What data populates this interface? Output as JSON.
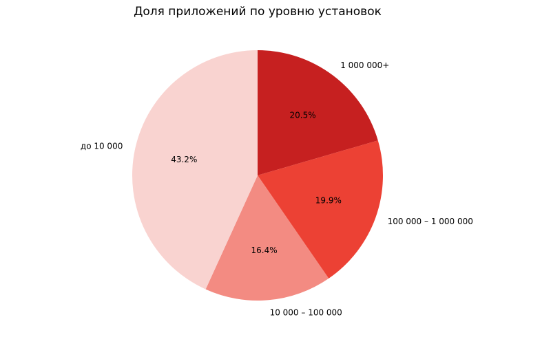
{
  "chart_data": {
    "type": "pie",
    "title": "Доля приложений по уровню установок",
    "slices": [
      {
        "label": "1 000 000+",
        "value": 20.5,
        "pct_label": "20.5%",
        "color": "#c62020"
      },
      {
        "label": "100 000 – 1 000 000",
        "value": 19.9,
        "pct_label": "19.9%",
        "color": "#ec4134"
      },
      {
        "label": "10 000 – 100 000",
        "value": 16.4,
        "pct_label": "16.4%",
        "color": "#f38b82"
      },
      {
        "label": "до 10 000",
        "value": 43.2,
        "pct_label": "43.2%",
        "color": "#f9d3d0"
      }
    ],
    "start_angle_deg": 90,
    "direction": "clockwise",
    "legend": "none"
  }
}
